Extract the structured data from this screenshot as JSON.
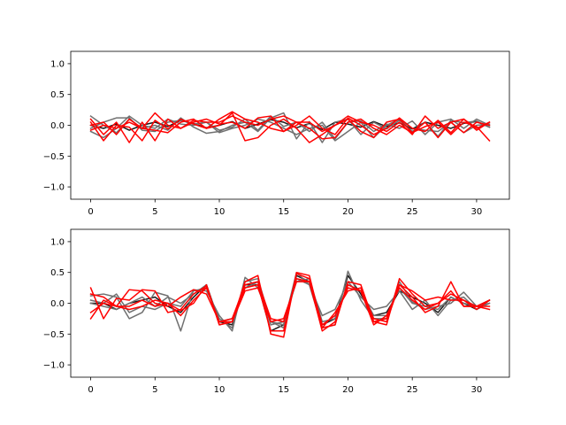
{
  "chart_data": [
    {
      "type": "line",
      "title": "",
      "xlabel": "",
      "ylabel": "",
      "xlim": [
        -1.55,
        32.55
      ],
      "ylim": [
        -1.2,
        1.2
      ],
      "xticks": [
        0,
        5,
        10,
        15,
        20,
        25,
        30
      ],
      "yticks": [
        1.0,
        0.5,
        0.0,
        -0.5,
        -1.0
      ],
      "xtick_labels": [
        "0",
        "5",
        "10",
        "15",
        "20",
        "25",
        "30"
      ],
      "ytick_labels": [
        "1.0",
        "0.5",
        "0.0",
        "−0.5",
        "−1.0"
      ],
      "grid": false,
      "series": [
        {
          "color": "#1a1a1a",
          "values": [
            0.0,
            -0.05,
            0.02,
            -0.08,
            0.0,
            0.05,
            -0.02,
            0.08,
            0.03,
            -0.04,
            0.0,
            0.06,
            -0.05,
            0.02,
            0.09,
            0.05,
            -0.04,
            0.03,
            -0.07,
            0.05,
            0.02,
            -0.03,
            0.06,
            -0.02,
            0.04,
            -0.06,
            0.05,
            0.0,
            -0.05,
            0.03,
            0.06,
            -0.03
          ]
        },
        {
          "color": "#707070",
          "values": [
            0.15,
            0.0,
            -0.12,
            0.1,
            -0.05,
            0.0,
            -0.08,
            0.12,
            -0.03,
            -0.13,
            -0.1,
            0.0,
            0.05,
            -0.1,
            0.12,
            0.2,
            -0.22,
            0.06,
            -0.28,
            0.05,
            0.1,
            -0.15,
            0.05,
            -0.06,
            0.08,
            -0.1,
            0.05,
            -0.18,
            0.08,
            0.04,
            0.07,
            -0.03
          ]
        },
        {
          "color": "#707070",
          "values": [
            -0.05,
            0.05,
            0.12,
            0.12,
            -0.08,
            -0.1,
            0.05,
            0.08,
            0.02,
            0.05,
            -0.08,
            -0.03,
            0.1,
            -0.08,
            0.15,
            -0.02,
            0.05,
            -0.1,
            0.05,
            -0.22,
            0.05,
            0.07,
            -0.1,
            0.02,
            -0.05,
            0.07,
            -0.15,
            0.05,
            0.1,
            -0.05,
            0.1,
            0.0
          ]
        },
        {
          "color": "#707070",
          "values": [
            -0.1,
            -0.2,
            -0.05,
            0.15,
            0.0,
            -0.05,
            0.1,
            0.02,
            0.0,
            0.05,
            -0.12,
            -0.05,
            0.0,
            0.1,
            0.05,
            -0.05,
            -0.15,
            -0.05,
            0.0,
            -0.25,
            -0.1,
            0.05,
            -0.2,
            0.0,
            0.1,
            -0.05,
            -0.08,
            -0.1,
            0.05,
            -0.12,
            0.0,
            0.02
          ]
        },
        {
          "color": "#ff0000",
          "values": [
            0.05,
            -0.25,
            0.0,
            -0.03,
            -0.25,
            0.08,
            -0.06,
            0.1,
            0.02,
            -0.05,
            0.0,
            0.2,
            -0.25,
            -0.2,
            0.0,
            0.1,
            -0.05,
            -0.28,
            -0.15,
            0.0,
            0.1,
            -0.1,
            -0.2,
            0.05,
            0.1,
            -0.12,
            -0.02,
            0.05,
            -0.15,
            0.05,
            -0.02,
            -0.25
          ]
        },
        {
          "color": "#ff0000",
          "values": [
            0.0,
            0.05,
            -0.15,
            0.1,
            -0.05,
            0.2,
            0.0,
            -0.05,
            0.05,
            0.1,
            0.02,
            0.05,
            -0.05,
            0.12,
            0.15,
            -0.1,
            0.0,
            0.15,
            -0.05,
            -0.15,
            0.12,
            0.0,
            -0.15,
            -0.05,
            0.12,
            -0.05,
            -0.1,
            0.08,
            -0.12,
            0.1,
            -0.05,
            0.05
          ]
        },
        {
          "color": "#ff0000",
          "values": [
            0.1,
            -0.15,
            0.05,
            -0.28,
            0.05,
            -0.25,
            0.1,
            -0.05,
            0.08,
            0.05,
            0.05,
            0.15,
            0.05,
            0.0,
            0.1,
            0.15,
            0.05,
            0.05,
            -0.1,
            0.0,
            0.15,
            0.05,
            0.0,
            -0.1,
            0.05,
            -0.15,
            0.15,
            -0.05,
            0.05,
            -0.12,
            0.05,
            0.0
          ]
        },
        {
          "color": "#ff0000",
          "values": [
            -0.08,
            0.0,
            -0.05,
            0.05,
            -0.05,
            -0.08,
            -0.12,
            0.05,
            0.1,
            -0.05,
            0.1,
            0.22,
            0.1,
            0.05,
            -0.05,
            -0.1,
            0.05,
            -0.05,
            -0.22,
            -0.2,
            0.05,
            0.1,
            -0.05,
            -0.15,
            0.0,
            -0.12,
            0.05,
            -0.2,
            0.05,
            0.1,
            -0.08,
            0.05
          ]
        }
      ]
    },
    {
      "type": "line",
      "title": "",
      "xlabel": "",
      "ylabel": "",
      "xlim": [
        -1.55,
        32.55
      ],
      "ylim": [
        -1.2,
        1.2
      ],
      "xticks": [
        0,
        5,
        10,
        15,
        20,
        25,
        30
      ],
      "yticks": [
        1.0,
        0.5,
        0.0,
        -0.5,
        -1.0
      ],
      "xtick_labels": [
        "0",
        "5",
        "10",
        "15",
        "20",
        "25",
        "30"
      ],
      "ytick_labels": [
        "1.0",
        "0.5",
        "0.0",
        "−0.5",
        "−1.0"
      ],
      "grid": false,
      "series": [
        {
          "color": "#1a1a1a",
          "values": [
            0.0,
            0.0,
            -0.1,
            0.0,
            0.05,
            0.1,
            -0.05,
            -0.15,
            0.1,
            0.3,
            -0.3,
            -0.35,
            0.3,
            0.3,
            -0.45,
            -0.35,
            0.45,
            0.35,
            -0.35,
            -0.25,
            0.45,
            0.15,
            -0.2,
            -0.15,
            0.2,
            0.1,
            0.0,
            -0.15,
            0.1,
            0.0,
            -0.1,
            0.05
          ]
        },
        {
          "color": "#707070",
          "values": [
            0.12,
            0.15,
            0.1,
            -0.25,
            -0.15,
            0.18,
            0.12,
            -0.45,
            0.22,
            0.2,
            -0.2,
            -0.45,
            0.42,
            0.25,
            -0.3,
            -0.35,
            0.5,
            0.3,
            -0.4,
            -0.35,
            0.52,
            0.05,
            -0.25,
            -0.25,
            0.35,
            0.02,
            -0.1,
            -0.05,
            0.0,
            0.18,
            -0.05,
            0.05
          ]
        },
        {
          "color": "#707070",
          "values": [
            0.05,
            0.0,
            0.15,
            -0.15,
            -0.05,
            -0.1,
            0.0,
            -0.05,
            0.2,
            0.25,
            -0.25,
            -0.4,
            0.35,
            0.4,
            -0.3,
            -0.4,
            0.4,
            0.3,
            -0.2,
            -0.1,
            0.35,
            0.1,
            -0.1,
            -0.05,
            0.2,
            -0.1,
            0.05,
            -0.2,
            0.05,
            0.1,
            -0.1,
            0.0
          ]
        },
        {
          "color": "#707070",
          "values": [
            0.0,
            -0.05,
            -0.1,
            0.0,
            0.1,
            -0.05,
            0.1,
            0.0,
            0.15,
            0.3,
            -0.3,
            -0.25,
            0.25,
            0.35,
            -0.35,
            -0.3,
            0.35,
            0.4,
            -0.3,
            -0.25,
            0.3,
            0.2,
            -0.2,
            -0.2,
            0.25,
            0.0,
            -0.05,
            -0.1,
            0.1,
            0.0,
            -0.05,
            0.0
          ]
        },
        {
          "color": "#ff0000",
          "values": [
            0.25,
            -0.25,
            0.08,
            0.05,
            0.22,
            0.2,
            -0.15,
            -0.1,
            0.15,
            0.28,
            -0.35,
            -0.3,
            0.35,
            0.45,
            -0.5,
            -0.55,
            0.5,
            0.45,
            -0.4,
            -0.35,
            0.35,
            0.3,
            -0.3,
            -0.35,
            0.4,
            0.15,
            -0.05,
            0.0,
            0.2,
            -0.05,
            -0.05,
            -0.1
          ]
        },
        {
          "color": "#ff0000",
          "values": [
            -0.25,
            0.05,
            -0.05,
            0.22,
            0.2,
            0.0,
            -0.05,
            0.1,
            0.22,
            0.15,
            -0.3,
            -0.25,
            0.3,
            0.35,
            -0.25,
            -0.3,
            0.4,
            0.35,
            -0.4,
            -0.15,
            0.2,
            0.25,
            -0.25,
            -0.3,
            0.3,
            0.2,
            0.05,
            0.1,
            0.05,
            0.05,
            -0.1,
            0.05
          ]
        },
        {
          "color": "#ff0000",
          "values": [
            0.15,
            0.1,
            -0.05,
            -0.1,
            -0.05,
            0.05,
            0.0,
            -0.12,
            0.0,
            0.3,
            -0.35,
            -0.3,
            0.25,
            0.3,
            -0.45,
            -0.45,
            0.48,
            0.4,
            -0.35,
            -0.2,
            0.25,
            0.2,
            -0.3,
            -0.25,
            0.3,
            0.1,
            -0.15,
            -0.05,
            0.35,
            -0.05,
            -0.05,
            -0.05
          ]
        },
        {
          "color": "#ff0000",
          "values": [
            -0.15,
            0.0,
            -0.05,
            -0.05,
            0.05,
            -0.05,
            0.0,
            -0.2,
            0.05,
            0.25,
            -0.3,
            -0.3,
            0.2,
            0.25,
            -0.3,
            -0.25,
            0.35,
            0.35,
            -0.45,
            -0.3,
            0.3,
            0.2,
            -0.35,
            -0.2,
            0.25,
            0.05,
            -0.1,
            0.0,
            0.15,
            0.05,
            -0.05,
            0.05
          ]
        }
      ]
    }
  ]
}
